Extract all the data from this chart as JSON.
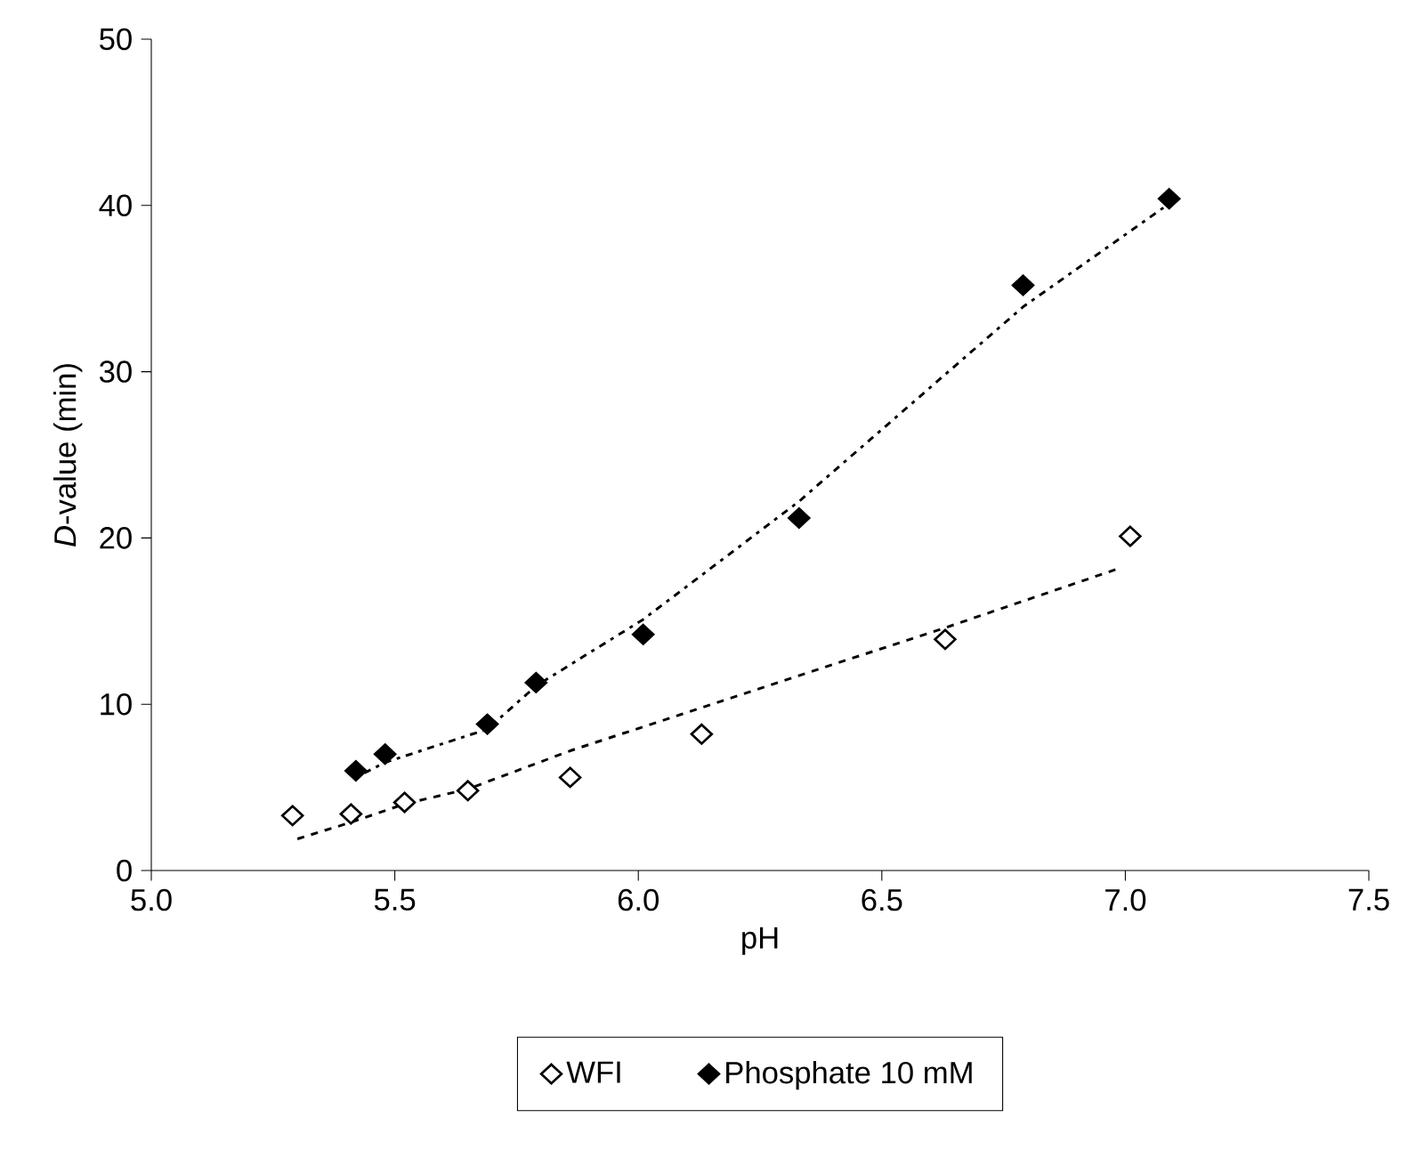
{
  "chart_data": {
    "type": "scatter",
    "xlabel": "pH",
    "ylabel": "*D*-value (min)",
    "xlim": [
      5.0,
      7.5
    ],
    "ylim": [
      0,
      50
    ],
    "xticks": [
      {
        "value": 5.0,
        "label": "5.0"
      },
      {
        "value": 5.5,
        "label": "5.5"
      },
      {
        "value": 6.0,
        "label": "6.0"
      },
      {
        "value": 6.5,
        "label": "6.5"
      },
      {
        "value": 7.0,
        "label": "7.0"
      },
      {
        "value": 7.5,
        "label": "7.5"
      }
    ],
    "yticks": [
      0,
      10,
      20,
      30,
      40,
      50
    ],
    "grid": false,
    "legend": "bottom",
    "marker": "diamond",
    "series": [
      {
        "name": "WFI",
        "color": "#ffffff",
        "x": [
          5.29,
          5.41,
          5.52,
          5.65,
          5.86,
          6.13,
          6.63,
          7.01
        ],
        "values": [
          3.3,
          3.4,
          4.1,
          4.8,
          5.6,
          8.2,
          13.9,
          20.1
        ]
      },
      {
        "name": "Phosphate 10 mM",
        "color": "#000000",
        "x": [
          5.42,
          5.48,
          5.69,
          5.79,
          6.01,
          6.33,
          6.79,
          7.09
        ],
        "values": [
          6.0,
          7.0,
          8.8,
          11.3,
          14.2,
          21.2,
          35.2,
          40.4
        ]
      },
      {
        "type": "line",
        "color": "#000000",
        "line_style": "dashed",
        "marker": "none",
        "x": [
          5.3,
          5.41,
          5.52,
          5.65,
          5.86,
          6.13,
          6.63,
          6.99
        ],
        "values": [
          1.9,
          2.9,
          4.0,
          4.9,
          7.2,
          9.8,
          14.6,
          18.2
        ]
      },
      {
        "type": "line",
        "color": "#000000",
        "line_style": "dotted",
        "marker": "none",
        "x": [
          5.42,
          5.48,
          5.69,
          5.79,
          6.01,
          6.33,
          6.79,
          7.08
        ],
        "values": [
          5.6,
          6.5,
          8.5,
          11.1,
          15.1,
          22.2,
          33.9,
          39.9
        ]
      }
    ]
  }
}
